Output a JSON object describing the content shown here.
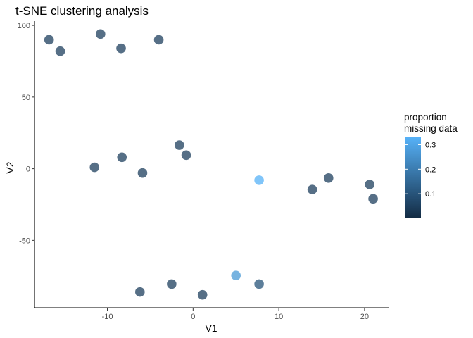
{
  "chart_data": {
    "type": "scatter",
    "title": "t-SNE clustering analysis",
    "xlabel": "V1",
    "ylabel": "V2",
    "xlim": [
      -18.5,
      22.8
    ],
    "ylim": [
      -97,
      103
    ],
    "xticks": [
      -10,
      0,
      10,
      20
    ],
    "yticks": [
      -50,
      0,
      50,
      100
    ],
    "grid": false,
    "points": [
      {
        "x": -16.8,
        "y": 90,
        "missing": 0.05
      },
      {
        "x": -15.5,
        "y": 82,
        "missing": 0.05
      },
      {
        "x": -10.8,
        "y": 94,
        "missing": 0.05
      },
      {
        "x": -8.4,
        "y": 84,
        "missing": 0.05
      },
      {
        "x": -4.0,
        "y": 90,
        "missing": 0.05
      },
      {
        "x": -11.5,
        "y": 1,
        "missing": 0.05
      },
      {
        "x": -8.3,
        "y": 8,
        "missing": 0.05
      },
      {
        "x": -5.9,
        "y": -3,
        "missing": 0.05
      },
      {
        "x": -1.6,
        "y": 16.5,
        "missing": 0.05
      },
      {
        "x": -0.8,
        "y": 9.5,
        "missing": 0.05
      },
      {
        "x": 7.7,
        "y": -8,
        "missing": 0.33
      },
      {
        "x": 13.9,
        "y": -14.5,
        "missing": 0.05
      },
      {
        "x": 15.8,
        "y": -6.5,
        "missing": 0.05
      },
      {
        "x": 20.6,
        "y": -11,
        "missing": 0.05
      },
      {
        "x": 21.0,
        "y": -21,
        "missing": 0.05
      },
      {
        "x": -6.2,
        "y": -86,
        "missing": 0.05
      },
      {
        "x": -2.5,
        "y": -80.5,
        "missing": 0.05
      },
      {
        "x": 1.1,
        "y": -88,
        "missing": 0.05
      },
      {
        "x": 5.0,
        "y": -74.5,
        "missing": 0.27
      },
      {
        "x": 7.7,
        "y": -80.5,
        "missing": 0.1
      }
    ],
    "legend": {
      "title_lines": [
        "proportion",
        "missing data"
      ],
      "ticks": [
        0.1,
        0.2,
        0.3
      ],
      "tick_labels": [
        "0.1",
        "0.2",
        "0.3"
      ],
      "range": [
        0.0,
        0.33
      ],
      "low_color": "#132b43",
      "high_color": "#56b1f7",
      "placement": "right"
    },
    "point_alpha": 0.75
  }
}
